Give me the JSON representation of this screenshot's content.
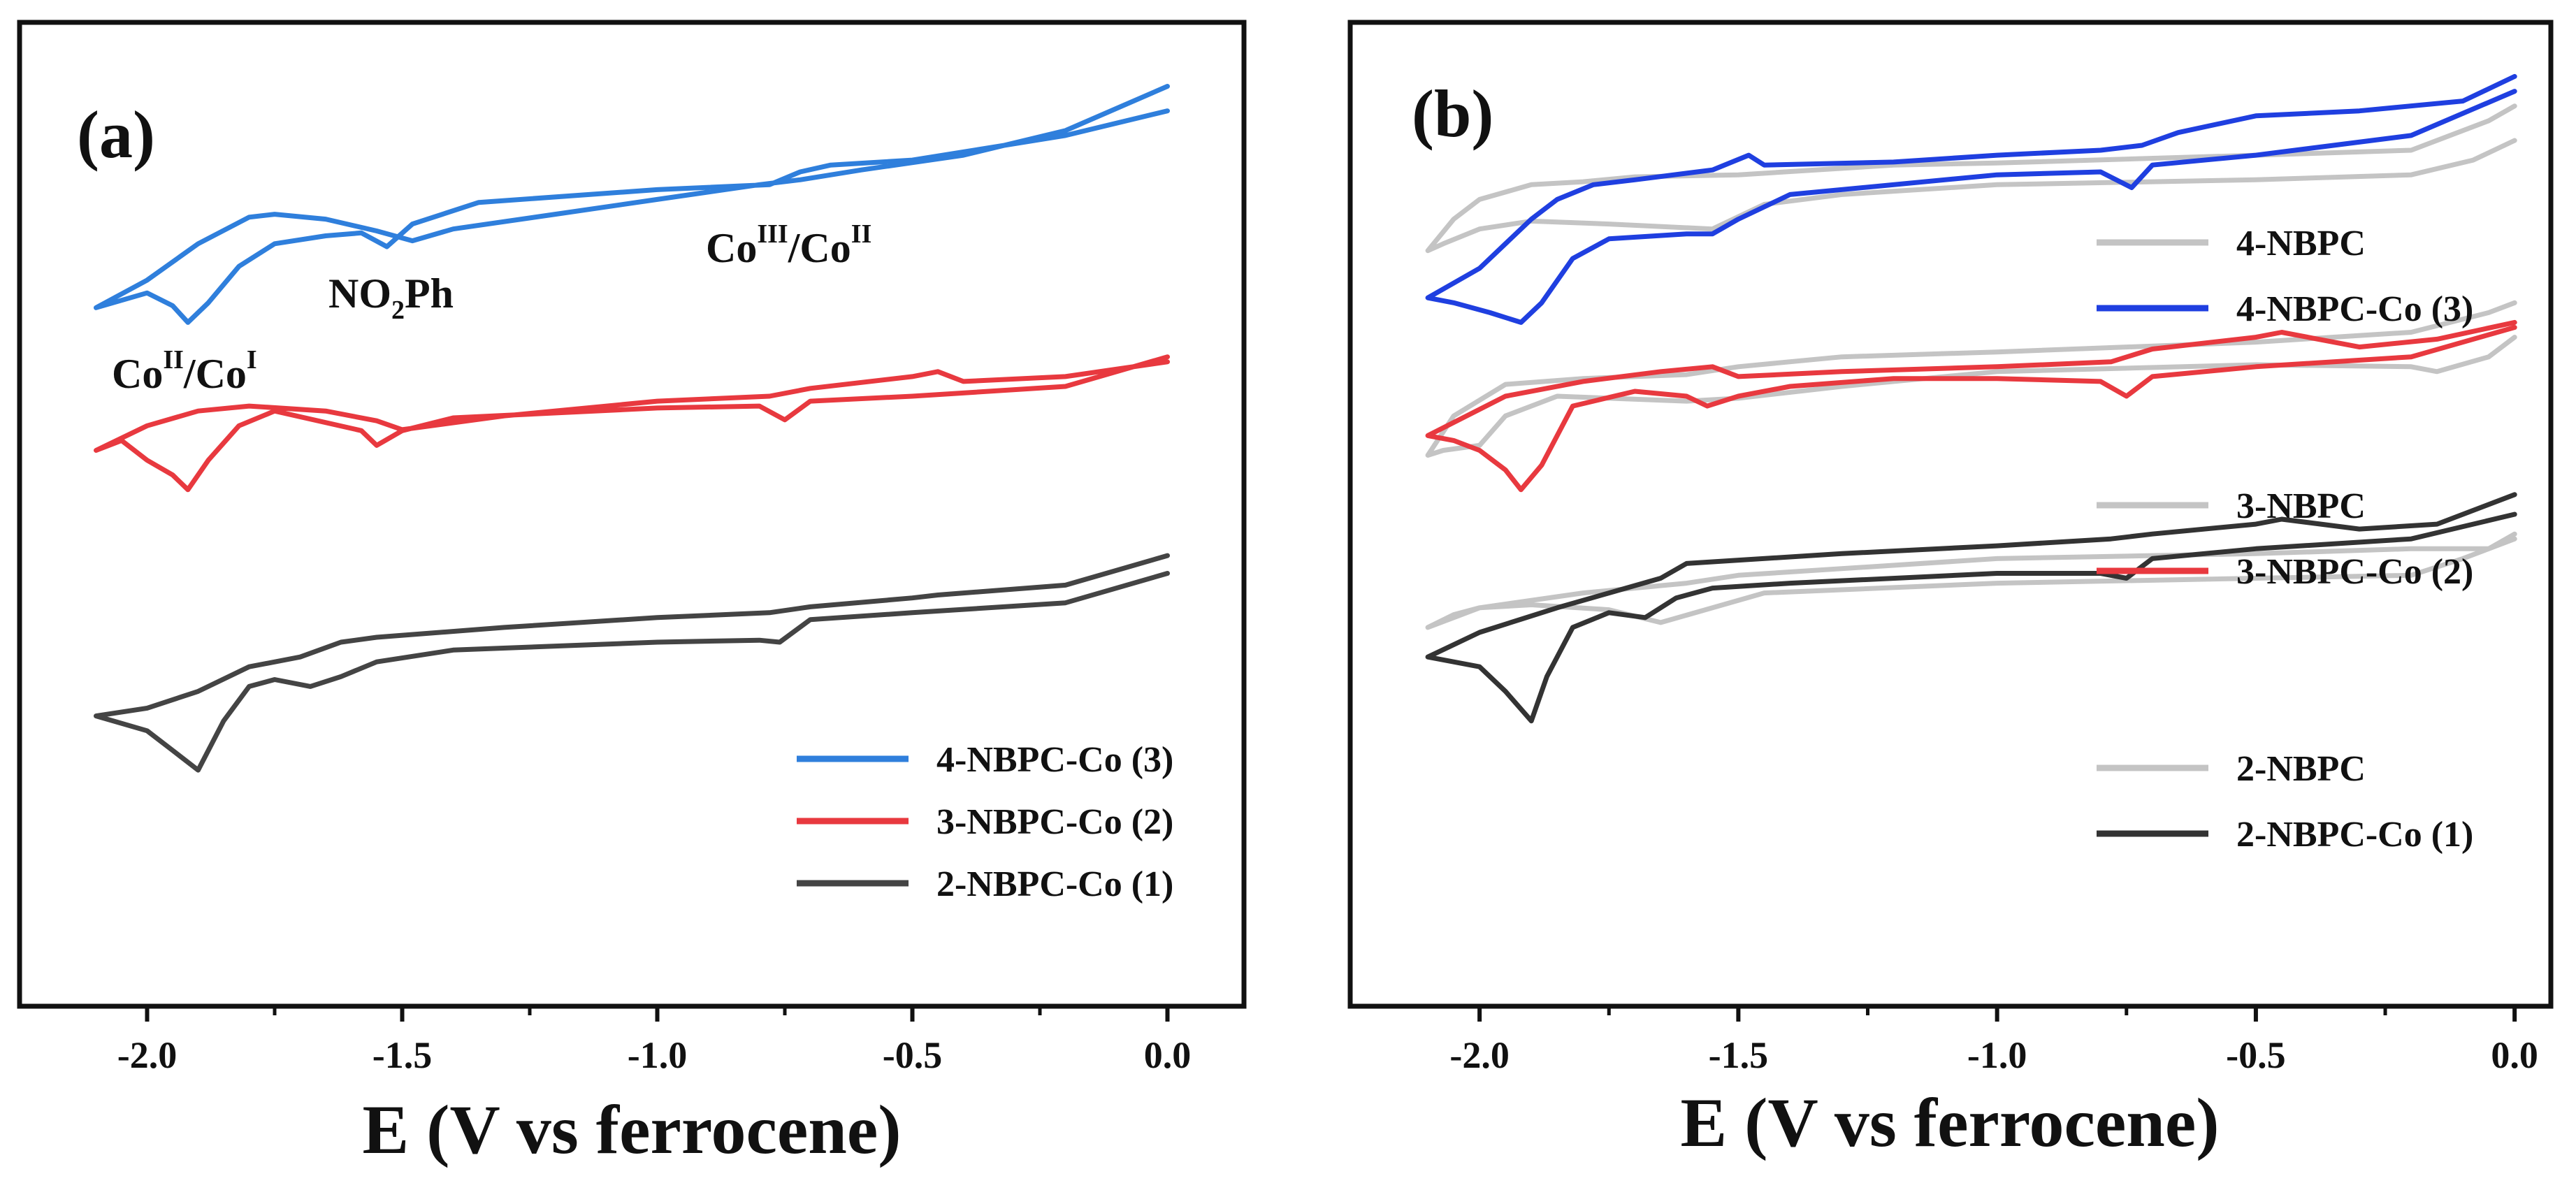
{
  "chart_data": [
    {
      "type": "line",
      "panel_label": "(a)",
      "xlabel": "E (V vs ferrocene)",
      "ylabel": "",
      "xlim": [
        -2.25,
        0.15
      ],
      "ylim": [
        0,
        100
      ],
      "x_ticks": [
        -2.0,
        -1.5,
        -1.0,
        -0.5,
        0.0
      ],
      "x_tick_labels": [
        "-2.0",
        "-1.5",
        "-1.0",
        "-0.5",
        "0.0"
      ],
      "legend": {
        "placement": "lower-right",
        "entries": [
          "4-NBPC-Co (3)",
          "3-NBPC-Co (2)",
          "2-NBPC-Co (1)"
        ]
      },
      "annotations": [
        {
          "base": "Co",
          "sup1": "II",
          "mid": "/Co",
          "sup2": "I",
          "x": -2.11,
          "y": 64
        },
        {
          "base": "NO",
          "sub": "2",
          "rest": "Ph",
          "x": -1.72,
          "y": 72
        },
        {
          "base": "Co",
          "sup1": "III",
          "mid": "/Co",
          "sup2": "II",
          "x": -0.9,
          "y": 78
        }
      ],
      "series": [
        {
          "name": "4-NBPC-Co (3)",
          "color": "#2f7fdc",
          "x": [
            0.0,
            -0.2,
            -0.4,
            -0.6,
            -0.72,
            -0.8,
            -1.0,
            -1.2,
            -1.4,
            -1.48,
            -1.55,
            -1.65,
            -1.75,
            -1.8,
            -1.9,
            -2.0,
            -2.1,
            -2.0,
            -1.95,
            -1.92,
            -1.88,
            -1.82,
            -1.75,
            -1.65,
            -1.58,
            -1.53,
            -1.48,
            -1.35,
            -1.0,
            -0.78,
            -0.72,
            -0.66,
            -0.5,
            -0.2,
            0.0
          ],
          "y": [
            93.5,
            89.0,
            86.5,
            85.0,
            84.0,
            83.5,
            82.0,
            80.5,
            79.0,
            77.8,
            78.8,
            80.0,
            80.5,
            80.2,
            77.5,
            73.8,
            71.0,
            72.5,
            71.2,
            69.5,
            71.5,
            75.2,
            77.5,
            78.3,
            78.6,
            77.2,
            79.5,
            81.7,
            83.0,
            83.5,
            84.8,
            85.5,
            86.0,
            88.5,
            91.0
          ]
        },
        {
          "name": "3-NBPC-Co (2)",
          "color": "#e8393f",
          "x": [
            0.0,
            -0.2,
            -0.4,
            -0.45,
            -0.5,
            -0.7,
            -0.78,
            -1.0,
            -1.3,
            -1.5,
            -1.55,
            -1.65,
            -1.8,
            -1.9,
            -2.0,
            -2.1,
            -2.05,
            -2.0,
            -1.95,
            -1.92,
            -1.88,
            -1.82,
            -1.75,
            -1.58,
            -1.55,
            -1.5,
            -1.4,
            -1.0,
            -0.8,
            -0.75,
            -0.7,
            -0.5,
            -0.2,
            0.0
          ],
          "y": [
            65.5,
            64.0,
            63.5,
            64.5,
            64.0,
            62.8,
            62.0,
            61.5,
            60.0,
            58.6,
            59.5,
            60.5,
            61.0,
            60.5,
            59.0,
            56.5,
            57.5,
            55.5,
            54.0,
            52.5,
            55.5,
            59.0,
            60.5,
            58.5,
            57.0,
            58.5,
            59.8,
            60.8,
            61.0,
            59.6,
            61.5,
            62.0,
            63.0,
            66.0
          ]
        },
        {
          "name": "2-NBPC-Co (1)",
          "color": "#444444",
          "x": [
            0.0,
            -0.2,
            -0.45,
            -0.5,
            -0.7,
            -0.78,
            -1.0,
            -1.3,
            -1.55,
            -1.62,
            -1.7,
            -1.8,
            -1.9,
            -2.0,
            -2.1,
            -2.0,
            -1.95,
            -1.9,
            -1.85,
            -1.8,
            -1.75,
            -1.68,
            -1.62,
            -1.55,
            -1.4,
            -1.0,
            -0.8,
            -0.76,
            -0.7,
            -0.5,
            -0.2,
            0.0
          ],
          "y": [
            45.8,
            42.8,
            41.8,
            41.5,
            40.6,
            40.0,
            39.5,
            38.5,
            37.5,
            37.0,
            35.5,
            34.5,
            32.0,
            30.3,
            29.5,
            28.0,
            26.0,
            24.0,
            29.0,
            32.5,
            33.2,
            32.5,
            33.5,
            35.0,
            36.2,
            37.0,
            37.2,
            37.0,
            39.3,
            40.0,
            41.0,
            44.0
          ]
        }
      ]
    },
    {
      "type": "line",
      "panel_label": "(b)",
      "xlabel": "E (V vs ferrocene)",
      "ylabel": "",
      "xlim": [
        -2.25,
        0.07
      ],
      "ylim": [
        0,
        100
      ],
      "x_ticks": [
        -2.0,
        -1.5,
        -1.0,
        -0.5,
        0.0
      ],
      "x_tick_labels": [
        "-2.0",
        "-1.5",
        "-1.0",
        "-0.5",
        "0.0"
      ],
      "legend": {
        "placement": "right",
        "entries": [
          "4-NBPC",
          "4-NBPC-Co (3)",
          "3-NBPC",
          "3-NBPC-Co (2)",
          "2-NBPC",
          "2-NBPC-Co (1)"
        ]
      },
      "series": [
        {
          "name": "4-NBPC",
          "color": "#c4c4c4",
          "x": [
            0.0,
            -0.05,
            -0.2,
            -0.5,
            -1.0,
            -1.2,
            -1.5,
            -1.7,
            -1.8,
            -1.9,
            -2.0,
            -2.05,
            -2.1,
            -2.07,
            -2.0,
            -1.9,
            -1.75,
            -1.55,
            -1.45,
            -1.3,
            -1.0,
            -0.5,
            -0.2,
            -0.08,
            0.0
          ],
          "y": [
            91.5,
            90.0,
            87.0,
            86.5,
            85.7,
            85.5,
            84.5,
            84.3,
            83.8,
            83.5,
            82.0,
            80.0,
            76.8,
            77.5,
            79.0,
            79.8,
            79.5,
            79.0,
            81.5,
            82.5,
            83.5,
            84.0,
            84.5,
            86.0,
            88.0
          ]
        },
        {
          "name": "4-NBPC-Co (3)",
          "color": "#1f3fe0",
          "x": [
            0.0,
            -0.1,
            -0.3,
            -0.5,
            -0.65,
            -0.72,
            -0.8,
            -1.0,
            -1.2,
            -1.45,
            -1.48,
            -1.55,
            -1.7,
            -1.78,
            -1.85,
            -1.9,
            -2.0,
            -2.1,
            -2.05,
            -1.98,
            -1.92,
            -1.88,
            -1.82,
            -1.75,
            -1.6,
            -1.55,
            -1.5,
            -1.4,
            -1.0,
            -0.8,
            -0.74,
            -0.7,
            -0.5,
            -0.2,
            0.0
          ],
          "y": [
            94.5,
            92.0,
            91.0,
            90.5,
            88.8,
            87.5,
            87.0,
            86.5,
            85.8,
            85.5,
            86.5,
            85.0,
            84.0,
            83.5,
            82.0,
            80.0,
            75.0,
            72.0,
            71.5,
            70.5,
            69.5,
            71.5,
            76.0,
            78.0,
            78.5,
            78.5,
            80.0,
            82.5,
            84.5,
            84.8,
            83.2,
            85.5,
            86.5,
            88.5,
            93.0
          ]
        },
        {
          "name": "3-NBPC",
          "color": "#c4c4c4",
          "x": [
            0.0,
            -0.05,
            -0.2,
            -0.5,
            -1.0,
            -1.3,
            -1.5,
            -1.6,
            -1.8,
            -1.95,
            -2.05,
            -2.1,
            -2.07,
            -2.0,
            -1.95,
            -1.85,
            -1.6,
            -1.5,
            -1.3,
            -1.0,
            -0.5,
            -0.2,
            -0.15,
            -0.05,
            0.0
          ],
          "y": [
            71.5,
            70.5,
            68.5,
            67.5,
            66.5,
            66.0,
            65.0,
            64.2,
            63.8,
            63.2,
            60.0,
            56.0,
            56.5,
            57.0,
            60.0,
            62.0,
            61.5,
            61.8,
            63.0,
            64.5,
            65.2,
            65.0,
            64.5,
            66.0,
            68.0
          ]
        },
        {
          "name": "3-NBPC-Co (2)",
          "color": "#e8393f",
          "x": [
            0.0,
            -0.15,
            -0.3,
            -0.45,
            -0.5,
            -0.7,
            -0.78,
            -1.0,
            -1.3,
            -1.5,
            -1.55,
            -1.65,
            -1.8,
            -1.95,
            -2.1,
            -2.05,
            -2.0,
            -1.95,
            -1.92,
            -1.88,
            -1.82,
            -1.7,
            -1.6,
            -1.56,
            -1.5,
            -1.4,
            -1.2,
            -1.0,
            -0.8,
            -0.75,
            -0.7,
            -0.5,
            -0.2,
            0.0
          ],
          "y": [
            69.5,
            67.8,
            67.0,
            68.5,
            68.0,
            66.8,
            65.5,
            65.0,
            64.5,
            64.0,
            65.0,
            64.5,
            63.5,
            62.0,
            58.0,
            57.5,
            56.5,
            54.5,
            52.5,
            55.0,
            61.0,
            62.5,
            62.0,
            61.0,
            62.0,
            63.0,
            63.8,
            63.8,
            63.5,
            62.0,
            64.0,
            65.0,
            66.0,
            69.0
          ]
        },
        {
          "name": "2-NBPC",
          "color": "#c4c4c4",
          "x": [
            0.0,
            -0.05,
            -0.2,
            -0.5,
            -1.0,
            -1.5,
            -1.6,
            -1.8,
            -2.0,
            -2.1,
            -2.05,
            -2.0,
            -1.9,
            -1.75,
            -1.65,
            -1.55,
            -1.45,
            -1.0,
            -0.5,
            -0.2,
            -0.1,
            0.0
          ],
          "y": [
            48.0,
            46.5,
            46.5,
            46.0,
            45.5,
            43.8,
            43.0,
            42.0,
            40.5,
            38.5,
            39.8,
            40.5,
            40.8,
            40.3,
            39.0,
            40.5,
            42.0,
            43.0,
            43.5,
            43.8,
            45.5,
            47.5
          ]
        },
        {
          "name": "2-NBPC-Co (1)",
          "color": "#333333",
          "x": [
            0.0,
            -0.15,
            -0.3,
            -0.45,
            -0.5,
            -0.7,
            -0.78,
            -1.0,
            -1.3,
            -1.6,
            -1.65,
            -1.75,
            -1.85,
            -2.0,
            -2.1,
            -2.05,
            -2.0,
            -1.95,
            -1.9,
            -1.87,
            -1.82,
            -1.75,
            -1.68,
            -1.62,
            -1.55,
            -1.4,
            -1.0,
            -0.8,
            -0.75,
            -0.7,
            -0.5,
            -0.2,
            0.0
          ],
          "y": [
            52.0,
            49.0,
            48.5,
            49.5,
            49.0,
            48.0,
            47.5,
            46.8,
            46.0,
            45.0,
            43.5,
            42.0,
            40.5,
            38.0,
            35.5,
            35.0,
            34.5,
            32.0,
            29.0,
            33.5,
            38.5,
            40.0,
            39.5,
            41.5,
            42.5,
            43.0,
            44.0,
            44.0,
            43.5,
            45.5,
            46.5,
            47.5,
            50.0
          ]
        }
      ]
    }
  ]
}
